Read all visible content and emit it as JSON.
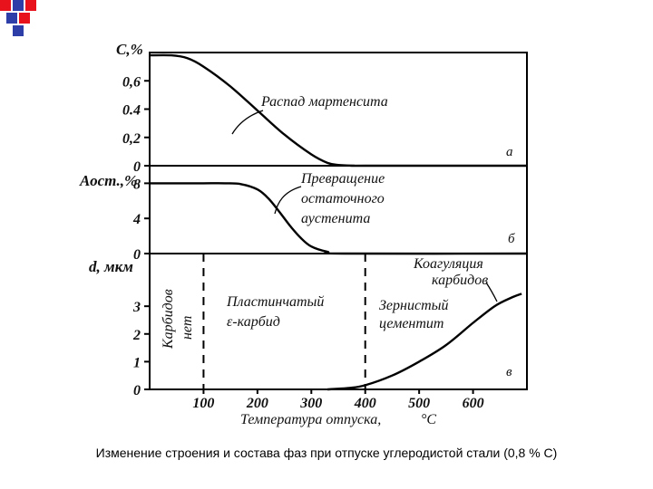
{
  "caption": "Изменение строения и состава фаз при отпуске углеродистой стали (0,8 % С)",
  "colors": {
    "logo_red": "#e8121c",
    "logo_blue": "#2d3ea8",
    "line": "#000000"
  },
  "chart_data": [
    {
      "panel": "a",
      "type": "line",
      "panel_label": "а",
      "ylabel": "С,%",
      "yticks": [
        "0",
        "0,2",
        "0.4",
        "0,6"
      ],
      "ytick_values": [
        0,
        0.2,
        0.4,
        0.6
      ],
      "ylim": [
        0,
        0.8
      ],
      "xlim": [
        0,
        700
      ],
      "series": [
        {
          "name": "Распад мартенсита",
          "x": [
            0,
            40,
            70,
            100,
            150,
            200,
            250,
            300,
            330,
            350,
            380,
            400,
            700
          ],
          "y": [
            0.78,
            0.78,
            0.76,
            0.7,
            0.56,
            0.39,
            0.22,
            0.08,
            0.02,
            0.005,
            0,
            0,
            0
          ]
        }
      ],
      "annotations": [
        {
          "text": "Распад мартенсита"
        }
      ]
    },
    {
      "panel": "b",
      "type": "line",
      "panel_label": "б",
      "ylabel": "Аост.,%",
      "yticks": [
        "0",
        "4",
        "8"
      ],
      "ytick_values": [
        0,
        4,
        8
      ],
      "ylim": [
        0,
        10
      ],
      "xlim": [
        0,
        700
      ],
      "series": [
        {
          "name": "Превращение остаточного аустенита",
          "x": [
            0,
            50,
            100,
            140,
            170,
            200,
            220,
            240,
            260,
            280,
            300,
            330,
            360,
            700
          ],
          "y": [
            8,
            8,
            8,
            8,
            7.9,
            7.3,
            6.3,
            4.8,
            3.2,
            1.8,
            0.8,
            0.2,
            0,
            0
          ]
        }
      ],
      "annotations": [
        {
          "lines": [
            "Превращение",
            "остаточного",
            "аустенита"
          ]
        }
      ]
    },
    {
      "panel": "c",
      "type": "line",
      "panel_label": "в",
      "ylabel": "d, мкм",
      "yticks": [
        "0",
        "1",
        "2",
        "3"
      ],
      "ytick_values": [
        0,
        1,
        2,
        3
      ],
      "ylim": [
        0,
        4.9
      ],
      "xlim": [
        0,
        700
      ],
      "xticks": [
        "100",
        "200",
        "300",
        "400",
        "500",
        "600"
      ],
      "xtick_values": [
        100,
        200,
        300,
        400,
        500,
        600
      ],
      "xlabel": "Температура отпуска,",
      "xunit": "°С",
      "dashed_lines_x": [
        100,
        400
      ],
      "series": [
        {
          "name": "Коагуляция карбидов",
          "x": [
            330,
            370,
            400,
            450,
            500,
            550,
            600,
            640,
            670,
            690
          ],
          "y": [
            0,
            0.05,
            0.15,
            0.5,
            1.0,
            1.6,
            2.4,
            3.0,
            3.3,
            3.45
          ]
        }
      ],
      "regions": [
        {
          "lines": [
            "Карбидов",
            "нет"
          ]
        },
        {
          "lines": [
            "Пластинчатый",
            "ε-карбид"
          ]
        },
        {
          "lines": [
            "Зернистый",
            "цементит"
          ]
        }
      ],
      "annotations": [
        {
          "lines": [
            "Коагуляция",
            "карбидов"
          ]
        }
      ]
    }
  ]
}
